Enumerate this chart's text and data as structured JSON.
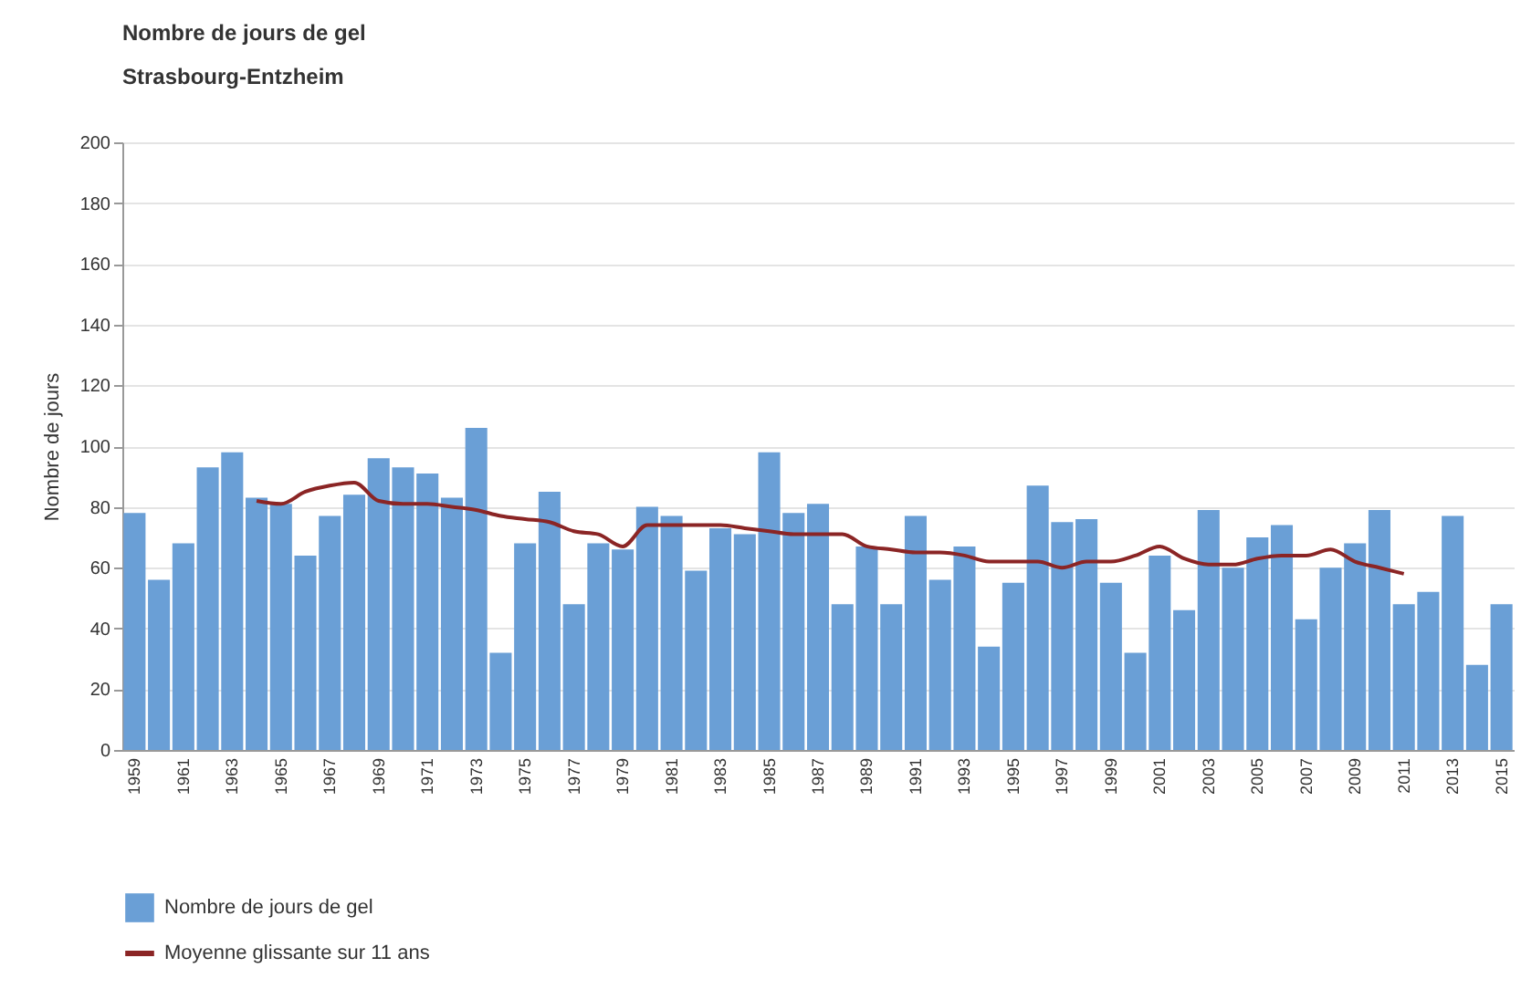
{
  "chart_data": {
    "type": "bar",
    "title": "Nombre de jours de gel",
    "subtitle": "Strasbourg-Entzheim",
    "ylabel": "Nombre de jours",
    "categories": [
      "1959",
      null,
      "1961",
      null,
      "1963",
      null,
      "1965",
      null,
      "1967",
      null,
      "1969",
      null,
      "1971",
      null,
      "1973",
      null,
      "1975",
      null,
      "1977",
      null,
      "1979",
      null,
      "1981",
      null,
      "1983",
      null,
      "1985",
      null,
      "1987",
      null,
      "1989",
      null,
      "1991",
      null,
      "1993",
      null,
      "1995",
      null,
      "1997",
      null,
      "1999",
      null,
      "2001",
      null,
      "2003",
      null,
      "2005",
      null,
      "2007",
      null,
      "2009",
      null,
      "2011",
      null,
      "2013",
      null,
      "2015"
    ],
    "series": [
      {
        "name": "Nombre de jours de gel",
        "color": "#6a9fd6",
        "values": [
          78,
          56,
          68,
          93,
          98,
          83,
          81,
          64,
          77,
          84,
          96,
          93,
          91,
          83,
          106,
          32,
          68,
          85,
          48,
          68,
          66,
          80,
          77,
          59,
          73,
          71,
          98,
          78,
          81,
          48,
          67,
          48,
          77,
          56,
          67,
          34,
          55,
          87,
          75,
          76,
          55,
          32,
          64,
          46,
          79,
          60,
          70,
          74,
          43,
          60,
          68,
          79,
          48,
          52,
          77,
          28,
          48
        ]
      },
      {
        "name": "Moyenne glissante sur 11 ans",
        "type": "line",
        "color": "#8b2525",
        "values": [
          null,
          null,
          null,
          null,
          null,
          82,
          81,
          85,
          87,
          88,
          82,
          81,
          81,
          80,
          79,
          77,
          76,
          75,
          72,
          71,
          67,
          74,
          74,
          74,
          74,
          73,
          72,
          71,
          71,
          71,
          67,
          66,
          65,
          65,
          64,
          62,
          62,
          62,
          60,
          62,
          62,
          64,
          67,
          63,
          61,
          61,
          63,
          64,
          64,
          66,
          62,
          60,
          58,
          null,
          null,
          null,
          null
        ]
      }
    ],
    "ylim": [
      0,
      200
    ],
    "yticks": [
      0,
      20,
      40,
      60,
      80,
      100,
      120,
      140,
      160,
      180,
      200
    ],
    "grid": "y",
    "legend": "bottom left"
  }
}
